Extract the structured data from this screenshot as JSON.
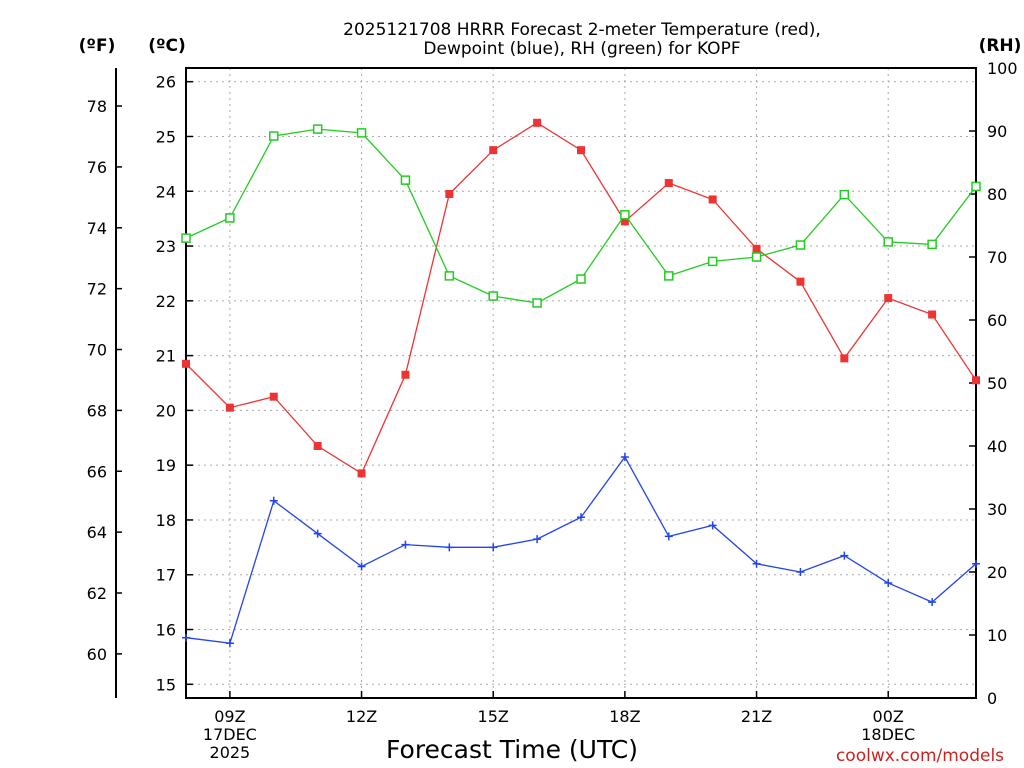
{
  "chart_data": {
    "type": "line",
    "title_lines": [
      "2025121708 HRRR Forecast 2-meter Temperature (red),",
      "Dewpoint (blue), RH (green) for KOPF"
    ],
    "xlabel": "Forecast Time (UTC)",
    "credit": "coolwx.com/models",
    "units": {
      "fahrenheit": "(ºF)",
      "celsius": "(ºC)",
      "rh": "(RH)"
    },
    "x_hours": [
      8,
      9,
      10,
      11,
      12,
      13,
      14,
      15,
      16,
      17,
      18,
      19,
      20,
      21,
      22,
      23,
      24,
      25,
      26
    ],
    "xlim": [
      8,
      26
    ],
    "x_ticks": [
      {
        "hour": 9,
        "lines": [
          "09Z",
          "17DEC",
          "2025"
        ]
      },
      {
        "hour": 12,
        "lines": [
          "12Z"
        ]
      },
      {
        "hour": 15,
        "lines": [
          "15Z"
        ]
      },
      {
        "hour": 18,
        "lines": [
          "18Z"
        ]
      },
      {
        "hour": 21,
        "lines": [
          "21Z"
        ]
      },
      {
        "hour": 24,
        "lines": [
          "00Z",
          "18DEC"
        ]
      }
    ],
    "celsius_axis": {
      "ylim": [
        14.75,
        26.25
      ],
      "ticks": [
        15,
        16,
        17,
        18,
        19,
        20,
        21,
        22,
        23,
        24,
        25,
        26
      ]
    },
    "fahrenheit_ticks": [
      60,
      62,
      64,
      66,
      68,
      70,
      72,
      74,
      76,
      78
    ],
    "rh_axis": {
      "ylim": [
        0,
        100
      ],
      "ticks": [
        0,
        10,
        20,
        30,
        40,
        50,
        60,
        70,
        80,
        90,
        100
      ]
    },
    "series": [
      {
        "name": "2-meter Temperature",
        "axis": "celsius",
        "color": "#ee3333",
        "marker": "filled-square",
        "values": [
          20.85,
          20.05,
          20.25,
          19.35,
          18.85,
          20.65,
          23.95,
          24.75,
          25.25,
          24.75,
          23.45,
          24.15,
          23.85,
          22.95,
          22.35,
          20.95,
          22.05,
          21.75,
          20.55
        ]
      },
      {
        "name": "Dewpoint",
        "axis": "celsius",
        "color": "#2244ee",
        "marker": "plus",
        "values": [
          15.85,
          15.75,
          18.35,
          17.75,
          17.15,
          17.55,
          17.5,
          17.5,
          17.65,
          18.05,
          19.15,
          17.7,
          17.9,
          17.2,
          17.05,
          17.35,
          16.85,
          16.5,
          17.2
        ]
      },
      {
        "name": "RH",
        "axis": "rh",
        "color": "#22cc22",
        "marker": "open-square",
        "values": [
          73.0,
          76.2,
          89.2,
          90.3,
          89.7,
          82.2,
          67.0,
          63.8,
          62.7,
          66.5,
          76.7,
          67.0,
          69.3,
          70.0,
          71.9,
          79.9,
          72.4,
          72.0,
          81.2
        ]
      }
    ]
  }
}
